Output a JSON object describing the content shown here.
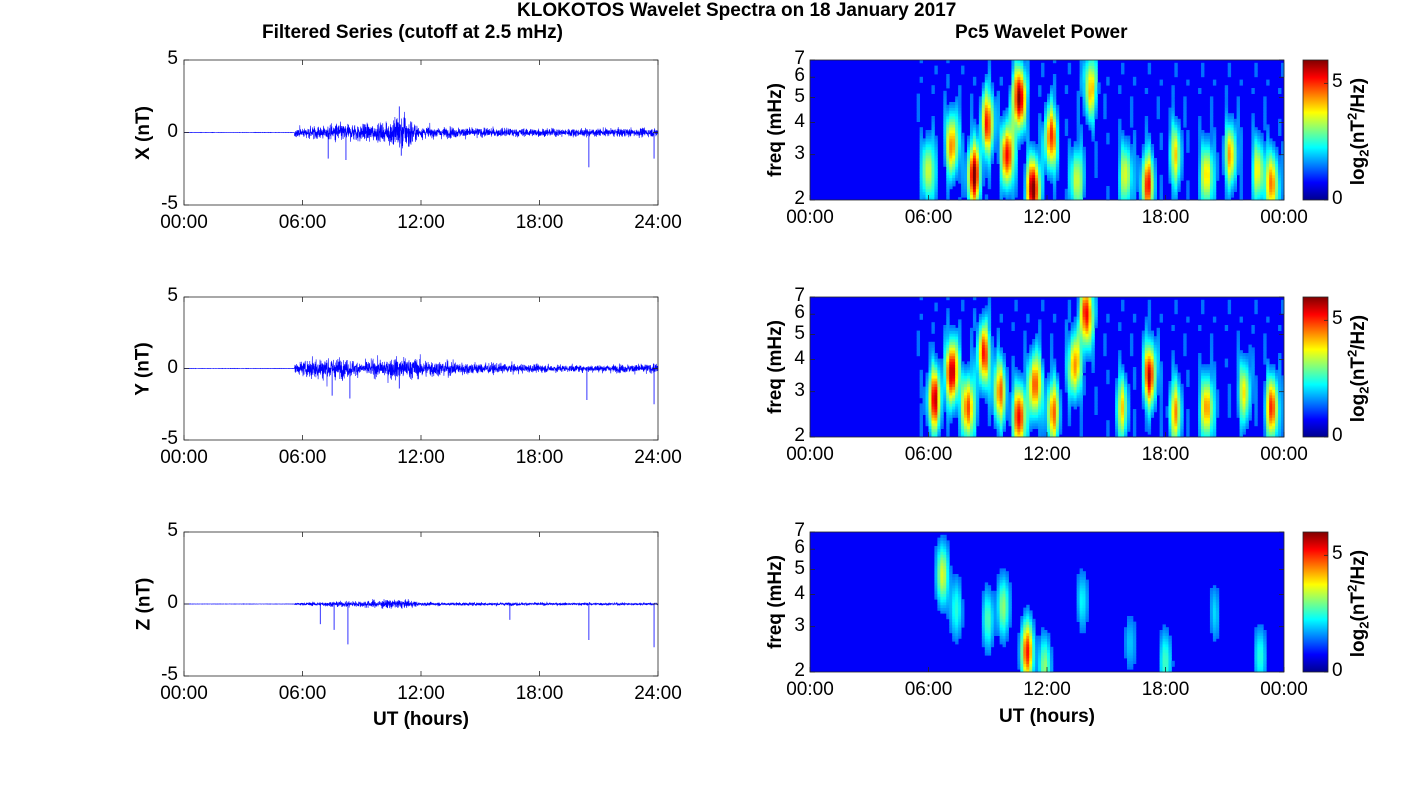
{
  "title": "KLOKOTOS Wavelet Spectra on 18 January 2017",
  "left_title": "Filtered Series (cutoff at 2.5 mHz)",
  "right_title": "Pc5 Wavelet Power",
  "xlabel": "UT (hours)",
  "chart_data": [
    {
      "type": "line",
      "name": "X",
      "ylabel": "X (nT)",
      "ylim": [
        -5,
        5
      ],
      "yticks": [
        "5",
        "0",
        "-5"
      ],
      "xlim": [
        0,
        24
      ],
      "xticks": [
        "00:00",
        "06:00",
        "12:00",
        "18:00",
        "24:00"
      ],
      "color": "#0000ff",
      "quiet_until_hour": 5.6,
      "amplitude_envelope": [
        [
          5.6,
          0.45
        ],
        [
          8.0,
          0.9
        ],
        [
          10.0,
          0.9
        ],
        [
          11.0,
          1.9
        ],
        [
          12.0,
          0.6
        ],
        [
          16.0,
          0.45
        ],
        [
          20.0,
          0.4
        ],
        [
          24.0,
          0.45
        ]
      ],
      "spikes": [
        [
          7.3,
          -1.8
        ],
        [
          8.2,
          -1.9
        ],
        [
          10.9,
          1.8
        ],
        [
          11.0,
          -1.6
        ],
        [
          20.5,
          -2.4
        ],
        [
          23.8,
          -1.8
        ]
      ]
    },
    {
      "type": "line",
      "name": "Y",
      "ylabel": "Y (nT)",
      "ylim": [
        -5,
        5
      ],
      "yticks": [
        "5",
        "0",
        "-5"
      ],
      "xlim": [
        0,
        24
      ],
      "xticks": [
        "00:00",
        "06:00",
        "12:00",
        "18:00",
        "24:00"
      ],
      "color": "#0000ff",
      "quiet_until_hour": 5.6,
      "amplitude_envelope": [
        [
          5.6,
          0.5
        ],
        [
          7.0,
          1.3
        ],
        [
          9.0,
          0.7
        ],
        [
          11.0,
          1.2
        ],
        [
          13.0,
          0.8
        ],
        [
          16.0,
          0.5
        ],
        [
          20.0,
          0.35
        ],
        [
          24.0,
          0.5
        ]
      ],
      "spikes": [
        [
          7.5,
          -1.9
        ],
        [
          8.4,
          -2.1
        ],
        [
          10.9,
          -1.4
        ],
        [
          20.4,
          -2.2
        ],
        [
          23.8,
          -2.5
        ]
      ]
    },
    {
      "type": "line",
      "name": "Z",
      "ylabel": "Z (nT)",
      "ylim": [
        -5,
        5
      ],
      "yticks": [
        "5",
        "0",
        "-5"
      ],
      "xlim": [
        0,
        24
      ],
      "xticks": [
        "00:00",
        "06:00",
        "12:00",
        "18:00",
        "24:00"
      ],
      "color": "#0000ff",
      "quiet_until_hour": 5.6,
      "amplitude_envelope": [
        [
          5.6,
          0.12
        ],
        [
          11.0,
          0.5
        ],
        [
          12.0,
          0.18
        ],
        [
          24.0,
          0.12
        ]
      ],
      "spikes": [
        [
          6.9,
          -1.4
        ],
        [
          7.6,
          -1.8
        ],
        [
          8.3,
          -2.8
        ],
        [
          16.5,
          -1.1
        ],
        [
          20.5,
          -2.5
        ],
        [
          23.8,
          -3.0
        ]
      ]
    },
    {
      "type": "heatmap",
      "name": "X wavelet",
      "ylabel": "freq (mHz)",
      "yticks": [
        "2",
        "3",
        "4",
        "5",
        "6",
        "7"
      ],
      "ylim": [
        2,
        7
      ],
      "yscale": "log",
      "xlim": [
        0,
        24
      ],
      "xticks": [
        "00:00",
        "06:00",
        "12:00",
        "18:00",
        "00:00"
      ],
      "colorbar_label": "log2(nT^2/Hz)",
      "colorbar_ticks": [
        "0",
        "5"
      ],
      "clim": [
        0,
        6
      ],
      "colormap": "jet",
      "active_from_hour": 5.3,
      "blobs": [
        [
          6.0,
          2.6,
          3.0
        ],
        [
          7.2,
          3.3,
          4.0
        ],
        [
          8.3,
          2.5,
          5.5
        ],
        [
          9.0,
          4.0,
          4.5
        ],
        [
          10.0,
          3.0,
          5.0
        ],
        [
          10.6,
          5.0,
          5.8
        ],
        [
          11.3,
          2.2,
          6.0
        ],
        [
          12.2,
          3.5,
          4.5
        ],
        [
          13.5,
          2.4,
          3.0
        ],
        [
          14.2,
          5.5,
          3.5
        ],
        [
          16.0,
          2.5,
          3.0
        ],
        [
          17.1,
          2.3,
          4.5
        ],
        [
          18.5,
          3.0,
          3.0
        ],
        [
          20.1,
          2.5,
          3.5
        ],
        [
          21.3,
          3.0,
          3.5
        ],
        [
          22.7,
          2.6,
          3.0
        ],
        [
          23.4,
          2.3,
          4.0
        ]
      ]
    },
    {
      "type": "heatmap",
      "name": "Y wavelet",
      "ylabel": "freq (mHz)",
      "yticks": [
        "2",
        "3",
        "4",
        "5",
        "6",
        "7"
      ],
      "ylim": [
        2,
        7
      ],
      "yscale": "log",
      "xlim": [
        0,
        24
      ],
      "xticks": [
        "00:00",
        "06:00",
        "12:00",
        "18:00",
        "00:00"
      ],
      "colorbar_label": "log2(nT^2/Hz)",
      "colorbar_ticks": [
        "0",
        "5"
      ],
      "clim": [
        0,
        6
      ],
      "colormap": "jet",
      "active_from_hour": 5.3,
      "blobs": [
        [
          6.3,
          2.8,
          5.0
        ],
        [
          7.2,
          3.6,
          5.5
        ],
        [
          8.0,
          2.6,
          4.5
        ],
        [
          8.8,
          4.2,
          4.5
        ],
        [
          9.6,
          3.0,
          4.0
        ],
        [
          10.6,
          2.4,
          5.0
        ],
        [
          11.4,
          3.2,
          4.5
        ],
        [
          12.3,
          2.5,
          4.0
        ],
        [
          13.4,
          3.8,
          4.0
        ],
        [
          14.0,
          6.0,
          5.0
        ],
        [
          15.8,
          2.6,
          3.0
        ],
        [
          17.2,
          3.5,
          5.0
        ],
        [
          18.5,
          2.5,
          3.5
        ],
        [
          20.1,
          2.6,
          4.0
        ],
        [
          22.0,
          3.0,
          3.0
        ],
        [
          23.4,
          2.6,
          4.5
        ]
      ]
    },
    {
      "type": "heatmap",
      "name": "Z wavelet",
      "ylabel": "freq (mHz)",
      "yticks": [
        "2",
        "3",
        "4",
        "5",
        "6",
        "7"
      ],
      "ylim": [
        2,
        7
      ],
      "yscale": "log",
      "xlim": [
        0,
        24
      ],
      "xticks": [
        "00:00",
        "06:00",
        "12:00",
        "18:00",
        "00:00"
      ],
      "colorbar_label": "log2(nT^2/Hz)",
      "colorbar_ticks": [
        "0",
        "5"
      ],
      "clim": [
        0,
        6
      ],
      "colormap": "jet",
      "active_from_hour": 6.0,
      "blobs": [
        [
          6.7,
          4.8,
          3.0
        ],
        [
          7.4,
          3.5,
          1.8
        ],
        [
          9.0,
          3.2,
          2.0
        ],
        [
          9.8,
          3.6,
          2.5
        ],
        [
          11.0,
          2.4,
          4.8
        ],
        [
          11.9,
          2.1,
          2.5
        ],
        [
          13.8,
          3.8,
          1.5
        ],
        [
          16.2,
          2.6,
          1.2
        ],
        [
          18.0,
          2.2,
          2.0
        ],
        [
          20.5,
          3.4,
          1.2
        ],
        [
          22.8,
          2.3,
          1.8
        ]
      ]
    }
  ]
}
